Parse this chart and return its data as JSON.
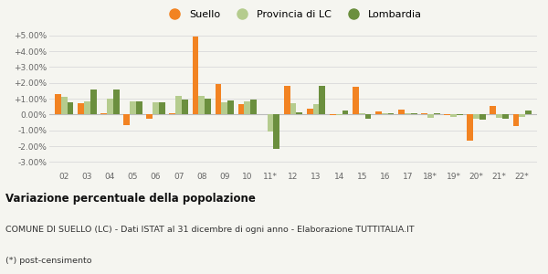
{
  "categories": [
    "02",
    "03",
    "04",
    "05",
    "06",
    "07",
    "08",
    "09",
    "10",
    "11*",
    "12",
    "13",
    "14",
    "15",
    "16",
    "17",
    "18*",
    "19*",
    "20*",
    "21*",
    "22*"
  ],
  "suello": [
    1.3,
    0.7,
    0.1,
    -0.65,
    -0.25,
    0.05,
    4.9,
    1.9,
    0.65,
    0.02,
    1.8,
    0.35,
    -0.05,
    1.75,
    0.2,
    0.3,
    0.1,
    -0.05,
    -1.65,
    0.55,
    -0.75
  ],
  "provincia": [
    1.1,
    0.85,
    1.0,
    0.85,
    0.75,
    1.2,
    1.2,
    0.75,
    0.85,
    -1.1,
    0.7,
    0.65,
    -0.05,
    0.1,
    0.1,
    0.1,
    -0.2,
    -0.15,
    -0.25,
    -0.2,
    -0.15
  ],
  "lombardia": [
    0.75,
    1.55,
    1.6,
    0.85,
    0.75,
    0.95,
    1.0,
    0.9,
    0.95,
    -2.15,
    0.15,
    1.8,
    0.25,
    -0.25,
    0.05,
    0.1,
    0.05,
    -0.05,
    -0.35,
    -0.25,
    0.25
  ],
  "suello_color": "#f28322",
  "provincia_color": "#b5cc8e",
  "lombardia_color": "#6b8f3e",
  "bg_color": "#f5f5f0",
  "grid_color": "#dddddd",
  "ylim": [
    -3.5,
    5.5
  ],
  "yticks": [
    -3.0,
    -2.0,
    -1.0,
    0.0,
    1.0,
    2.0,
    3.0,
    4.0,
    5.0
  ],
  "title": "Variazione percentuale della popolazione",
  "subtitle": "COMUNE DI SUELLO (LC) - Dati ISTAT al 31 dicembre di ogni anno - Elaborazione TUTTITALIA.IT",
  "footnote": "(*) post-censimento",
  "legend_labels": [
    "Suello",
    "Provincia di LC",
    "Lombardia"
  ],
  "bar_width": 0.27
}
